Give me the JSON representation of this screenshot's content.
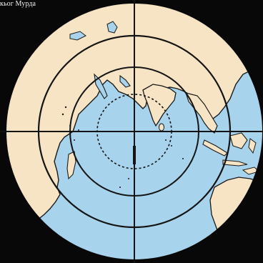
{
  "caption": "кьог Мурдa",
  "map": {
    "projection": "azimuthal",
    "range_rings": 3,
    "crosshair": true,
    "colors": {
      "background": "#080808",
      "ocean": "#a8d3ec",
      "land": "#f6e4c4",
      "lines": "#141414"
    }
  }
}
